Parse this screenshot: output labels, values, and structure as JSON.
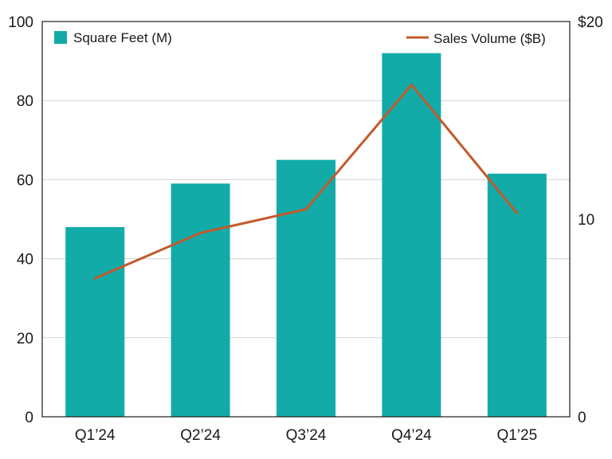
{
  "chart_data": {
    "type": "bar",
    "categories": [
      "Q1’24",
      "Q2’24",
      "Q3’24",
      "Q4’24",
      "Q1’25"
    ],
    "series": [
      {
        "name": "Square Feet (M)",
        "type": "bar",
        "axis": "left",
        "values": [
          48,
          59,
          65,
          92,
          61.5
        ]
      },
      {
        "name": "Sales Volume ($B)",
        "type": "line",
        "axis": "right",
        "values": [
          7,
          9.3,
          10.5,
          16.8,
          10.3
        ]
      }
    ],
    "ylim": [
      0,
      100
    ],
    "y_ticks": [
      "0",
      "20",
      "40",
      "60",
      "80",
      "100"
    ],
    "y2lim": [
      0,
      20
    ],
    "y2_ticks": [
      "0",
      "10",
      "$20"
    ],
    "grid": true,
    "legend": {
      "bar_position": "top-left",
      "line_position": "top-right"
    },
    "colors": {
      "bar": "#12aba8",
      "line": "#c25a2c"
    }
  }
}
